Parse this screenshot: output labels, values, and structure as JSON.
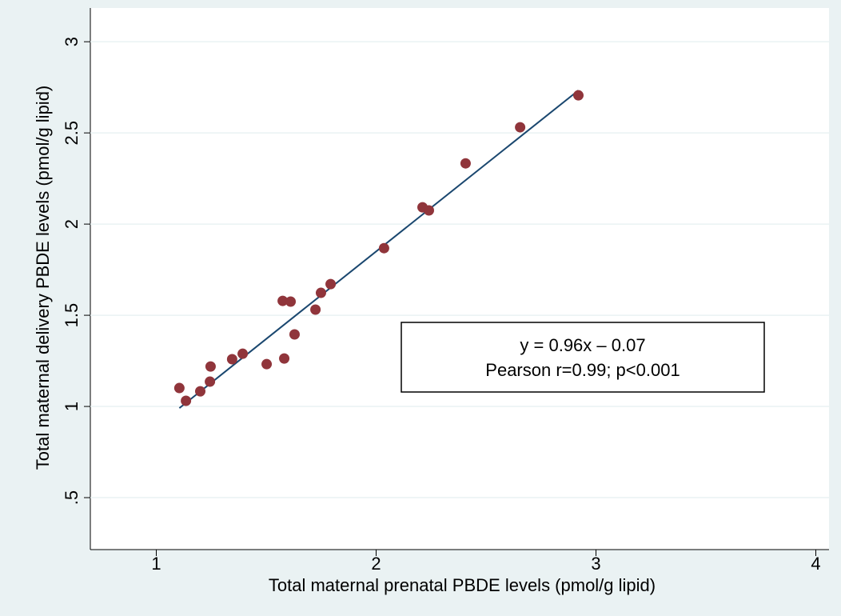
{
  "chart_data": {
    "type": "scatter",
    "x_label": "Total maternal prenatal PBDE levels (pmol/g lipid)",
    "y_label": "Total maternal delivery PBDE levels (pmol/g lipid)",
    "xlim": [
      0.7,
      4.06
    ],
    "ylim": [
      0.215,
      3.185
    ],
    "xticks": [
      1,
      2,
      3,
      4
    ],
    "yticks": [
      {
        "value": 0.5,
        "label": ".5"
      },
      1,
      1.5,
      2,
      2.5,
      3
    ],
    "grid": true,
    "series": [
      {
        "color": "#90353b",
        "x": [
          1.105,
          1.135,
          1.2,
          1.244,
          1.247,
          1.345,
          1.393,
          1.502,
          1.575,
          1.582,
          1.611,
          1.629,
          1.724,
          1.749,
          1.793,
          2.036,
          2.211,
          2.24,
          2.407,
          2.655,
          2.92
        ],
        "values": [
          1.101,
          1.031,
          1.083,
          1.136,
          1.219,
          1.259,
          1.289,
          1.232,
          1.579,
          1.263,
          1.575,
          1.395,
          1.531,
          1.623,
          1.671,
          1.868,
          2.092,
          2.075,
          2.333,
          2.531,
          2.706
        ]
      }
    ],
    "fit": {
      "color": "#1a476f",
      "x": [
        1.105,
        2.92
      ],
      "values": [
        0.991,
        2.733
      ]
    },
    "annotations": [
      "y = 0.96x – 0.07",
      "Pearson r=0.99; p<0.001"
    ]
  }
}
